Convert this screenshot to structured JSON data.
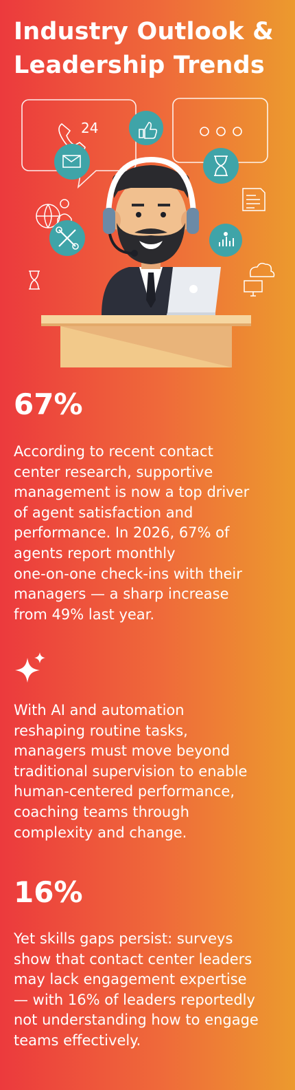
{
  "title_lines": [
    "Industry Outlook &",
    "Leadership Trends"
  ],
  "illustration": {
    "bubble_text": "24",
    "dots_text": "○○○",
    "icons": [
      "phone-icon",
      "thumbs-up-icon",
      "email-reply-icon",
      "hourglass-icon",
      "globe-person-icon",
      "tools-icon",
      "team-chart-icon",
      "document-icon",
      "cloud-computer-icon"
    ]
  },
  "sections": [
    {
      "stat": "67%",
      "lines": [
        "According to recent contact",
        "center research, supportive",
        "management is now a top driver",
        "of agent satisfaction and",
        "performance. In 2026, 67% of",
        "agents report monthly",
        "one-on-one check-ins with their",
        "managers — a sharp increase",
        "from 49% last year."
      ]
    },
    {
      "icon": "sparkle-icon",
      "lines": [
        "With AI and automation",
        "reshaping routine tasks,",
        "managers must move beyond",
        "traditional supervision to enable",
        "human-centered performance,",
        "coaching teams through",
        "complexity and change."
      ]
    },
    {
      "stat": "16%",
      "lines": [
        "Yet skills gaps persist: surveys",
        "show that contact center leaders",
        "may lack engagement expertise",
        "— with 16% of leaders reportedly",
        "not understanding how to engage",
        "teams effectively."
      ]
    }
  ],
  "colors": {
    "background_left": "#ec3a3d",
    "background_right": "#ec9a2e",
    "icon_teal": "#3fa4a8",
    "desk": "#f2c98a",
    "skin": "#f1c08f"
  }
}
